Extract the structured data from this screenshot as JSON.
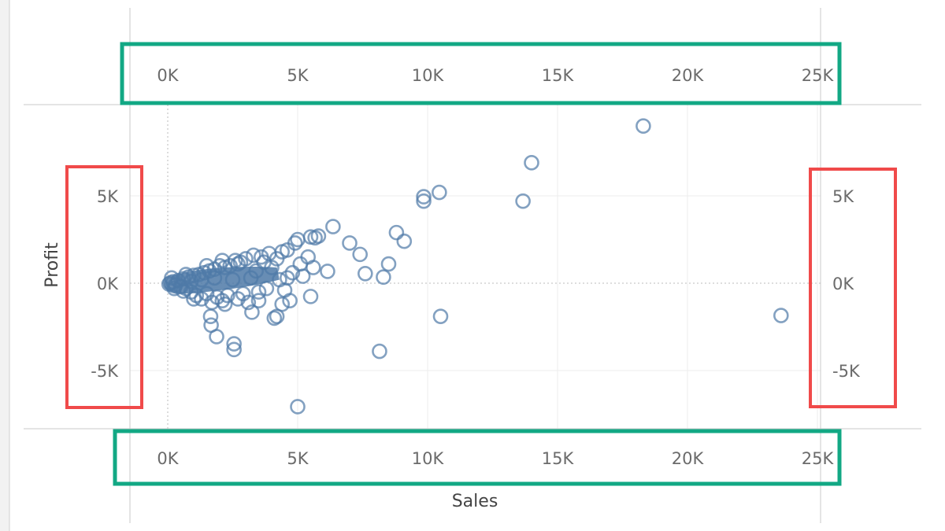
{
  "chart_data": {
    "type": "scatter",
    "title": "",
    "xlabel": "Sales",
    "ylabel": "Profit",
    "xlim": [
      -1500,
      25200
    ],
    "ylim": [
      -8300,
      10300
    ],
    "x_ticks": [
      0,
      5000,
      10000,
      15000,
      20000,
      25000
    ],
    "x_tick_labels": [
      "0K",
      "5K",
      "10K",
      "15K",
      "20K",
      "25K"
    ],
    "y_ticks": [
      -5000,
      0,
      5000
    ],
    "y_tick_labels": [
      "-5K",
      "0K",
      "5K"
    ],
    "grid": true,
    "marker": "hollow-circle",
    "marker_color": "#4e79a7",
    "highlight_colors": {
      "x_axes": "#12a884",
      "y_axes": "#f04a4a"
    },
    "points": [
      [
        18300,
        9000
      ],
      [
        14000,
        6900
      ],
      [
        10450,
        5200
      ],
      [
        9850,
        4950
      ],
      [
        9850,
        4700
      ],
      [
        13670,
        4700
      ],
      [
        23600,
        -1850
      ],
      [
        10500,
        -1900
      ],
      [
        8150,
        -3900
      ],
      [
        5000,
        -7070
      ],
      [
        6360,
        3240
      ],
      [
        8800,
        2900
      ],
      [
        9100,
        2400
      ],
      [
        7000,
        2300
      ],
      [
        7400,
        1650
      ],
      [
        8500,
        1100
      ],
      [
        7600,
        550
      ],
      [
        8300,
        350
      ],
      [
        6150,
        680
      ],
      [
        5500,
        -760
      ],
      [
        4700,
        -1000
      ],
      [
        4100,
        -2000
      ],
      [
        4200,
        -1900
      ],
      [
        3240,
        -1660
      ],
      [
        2550,
        -3470
      ],
      [
        2550,
        -3800
      ],
      [
        1880,
        -3060
      ],
      [
        1670,
        -2400
      ],
      [
        5800,
        2700
      ],
      [
        5670,
        2600
      ],
      [
        5500,
        2650
      ],
      [
        5000,
        2500
      ],
      [
        5400,
        1500
      ],
      [
        4400,
        1800
      ],
      [
        4900,
        2300
      ],
      [
        4600,
        1900
      ],
      [
        3900,
        1700
      ],
      [
        3600,
        1500
      ],
      [
        3300,
        1600
      ],
      [
        3000,
        1400
      ],
      [
        2800,
        1200
      ],
      [
        2600,
        1300
      ],
      [
        2400,
        1000
      ],
      [
        2200,
        900
      ],
      [
        2000,
        1000
      ],
      [
        1800,
        800
      ],
      [
        1600,
        700
      ],
      [
        1400,
        600
      ],
      [
        1200,
        500
      ],
      [
        1000,
        450
      ],
      [
        800,
        350
      ],
      [
        600,
        250
      ],
      [
        400,
        150
      ],
      [
        200,
        80
      ],
      [
        100,
        20
      ],
      [
        50,
        -50
      ],
      [
        300,
        -100
      ],
      [
        500,
        -200
      ],
      [
        700,
        -300
      ],
      [
        900,
        -500
      ],
      [
        1100,
        -700
      ],
      [
        1300,
        -900
      ],
      [
        1500,
        -600
      ],
      [
        1700,
        -1100
      ],
      [
        1900,
        -800
      ],
      [
        2100,
        -1000
      ],
      [
        2300,
        -700
      ],
      [
        2700,
        -900
      ],
      [
        2900,
        -600
      ],
      [
        3100,
        -1100
      ],
      [
        3500,
        -500
      ],
      [
        3800,
        -300
      ],
      [
        4300,
        200
      ],
      [
        4500,
        -400
      ],
      [
        4800,
        600
      ],
      [
        5200,
        400
      ],
      [
        5600,
        900
      ],
      [
        4000,
        900
      ],
      [
        3400,
        700
      ],
      [
        3200,
        300
      ],
      [
        2500,
        200
      ],
      [
        1800,
        300
      ],
      [
        1300,
        200
      ],
      [
        900,
        100
      ],
      [
        700,
        500
      ],
      [
        1500,
        1000
      ],
      [
        2100,
        1300
      ],
      [
        2700,
        1100
      ],
      [
        3700,
        1200
      ],
      [
        4200,
        1400
      ],
      [
        600,
        -450
      ],
      [
        1000,
        -900
      ],
      [
        250,
        -300
      ],
      [
        150,
        300
      ],
      [
        3500,
        -1000
      ],
      [
        2200,
        -1200
      ],
      [
        1650,
        -1900
      ],
      [
        4400,
        -1200
      ],
      [
        5100,
        1100
      ],
      [
        4600,
        300
      ]
    ]
  }
}
